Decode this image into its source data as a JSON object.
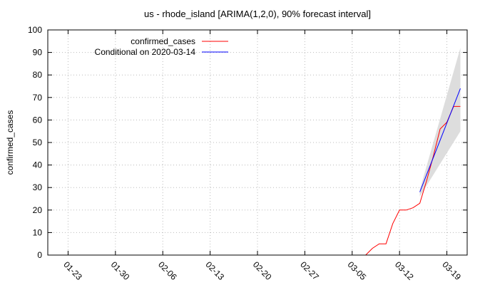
{
  "chart_data": {
    "type": "line",
    "title": "us - rhode_island [ARIMA(1,2,0), 90% forecast interval]",
    "xlabel": "",
    "ylabel": "confirmed_cases",
    "ylim": [
      0,
      100
    ],
    "yticks": [
      0,
      10,
      20,
      30,
      40,
      50,
      60,
      70,
      80,
      90,
      100
    ],
    "xlim": [
      "2020-01-20",
      "2020-03-22"
    ],
    "xticks": [
      "01-23",
      "01-30",
      "02-06",
      "02-13",
      "02-20",
      "02-27",
      "03-05",
      "03-12",
      "03-19"
    ],
    "grid": true,
    "legend_position": "top-left",
    "series": [
      {
        "name": "confirmed_cases",
        "color": "#ff0000",
        "x": [
          "2020-03-07",
          "2020-03-08",
          "2020-03-09",
          "2020-03-10",
          "2020-03-11",
          "2020-03-12",
          "2020-03-13",
          "2020-03-14",
          "2020-03-15",
          "2020-03-16",
          "2020-03-17",
          "2020-03-18",
          "2020-03-19",
          "2020-03-20",
          "2020-03-21"
        ],
        "y": [
          0,
          3,
          5,
          5,
          14,
          20,
          20,
          21,
          23,
          33,
          44,
          56,
          59,
          66,
          66
        ]
      },
      {
        "name": "Conditional on 2020-03-14",
        "color": "#0000ff",
        "x": [
          "2020-03-15",
          "2020-03-21"
        ],
        "y": [
          28,
          74
        ]
      }
    ],
    "forecast_interval": {
      "color": "#dddddd",
      "x": [
        "2020-03-15",
        "2020-03-21"
      ],
      "lower": [
        26,
        55
      ],
      "upper": [
        29,
        92
      ]
    }
  }
}
